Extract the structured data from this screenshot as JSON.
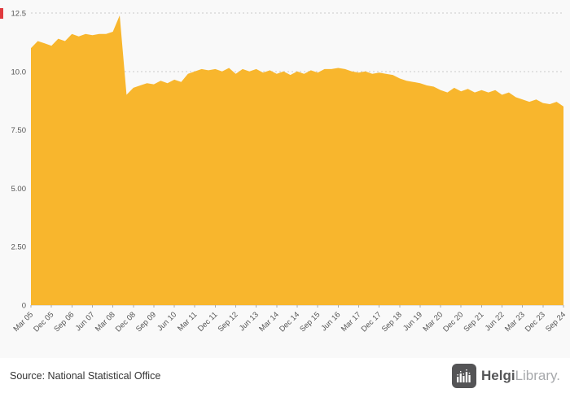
{
  "footer": {
    "source": "Source: National Statistical Office",
    "logo_primary": "Helgi",
    "logo_secondary": "Library",
    "logo_suffix": "."
  },
  "chart_data": {
    "type": "area",
    "title": "",
    "xlabel": "",
    "ylabel": "",
    "ylim": [
      0,
      12.5
    ],
    "grid": true,
    "legend": false,
    "series_color": "#f8b62d",
    "background": "#f9f9f9",
    "axis_marker_color": "#e03a3e",
    "y_ticks": [
      "0",
      "2.50",
      "5.00",
      "7.50",
      "10.0",
      "12.5"
    ],
    "y_tick_values": [
      0,
      2.5,
      5.0,
      7.5,
      10.0,
      12.5
    ],
    "x_tick_every": 3,
    "x_tick_labels": [
      "Mar 05",
      "Dec 05",
      "Sep 06",
      "Jun 07",
      "Mar 08",
      "Dec 08",
      "Sep 09",
      "Jun 10",
      "Mar 11",
      "Dec 11",
      "Sep 12",
      "Jun 13",
      "Mar 14",
      "Dec 14",
      "Sep 15",
      "Jun 16",
      "Mar 17",
      "Dec 17",
      "Sep 18",
      "Jun 19",
      "Mar 20",
      "Dec 20",
      "Sep 21",
      "Jun 22",
      "Mar 23",
      "Dec 23",
      "Sep 24"
    ],
    "categories": [
      "Mar 05",
      "Jun 05",
      "Sep 05",
      "Dec 05",
      "Mar 06",
      "Jun 06",
      "Sep 06",
      "Dec 06",
      "Mar 07",
      "Jun 07",
      "Sep 07",
      "Dec 07",
      "Mar 08",
      "Jun 08",
      "Sep 08",
      "Dec 08",
      "Mar 09",
      "Jun 09",
      "Sep 09",
      "Dec 09",
      "Mar 10",
      "Jun 10",
      "Sep 10",
      "Dec 10",
      "Mar 11",
      "Jun 11",
      "Sep 11",
      "Dec 11",
      "Mar 12",
      "Jun 12",
      "Sep 12",
      "Dec 12",
      "Mar 13",
      "Jun 13",
      "Sep 13",
      "Dec 13",
      "Mar 14",
      "Jun 14",
      "Sep 14",
      "Dec 14",
      "Mar 15",
      "Jun 15",
      "Sep 15",
      "Dec 15",
      "Mar 16",
      "Jun 16",
      "Sep 16",
      "Dec 16",
      "Mar 17",
      "Jun 17",
      "Sep 17",
      "Dec 17",
      "Mar 18",
      "Jun 18",
      "Sep 18",
      "Dec 18",
      "Mar 19",
      "Jun 19",
      "Sep 19",
      "Dec 19",
      "Mar 20",
      "Jun 20",
      "Sep 20",
      "Dec 20",
      "Mar 21",
      "Jun 21",
      "Sep 21",
      "Dec 21",
      "Mar 22",
      "Jun 22",
      "Sep 22",
      "Dec 22",
      "Mar 23",
      "Jun 23",
      "Sep 23",
      "Dec 23",
      "Mar 24",
      "Jun 24",
      "Sep 24"
    ],
    "values": [
      11.0,
      11.3,
      11.2,
      11.1,
      11.4,
      11.3,
      11.6,
      11.5,
      11.6,
      11.55,
      11.6,
      11.6,
      11.7,
      12.4,
      9.0,
      9.3,
      9.4,
      9.5,
      9.45,
      9.6,
      9.5,
      9.65,
      9.55,
      9.9,
      10.0,
      10.1,
      10.05,
      10.1,
      10.0,
      10.15,
      9.9,
      10.1,
      10.0,
      10.1,
      9.95,
      10.05,
      9.9,
      10.0,
      9.85,
      10.0,
      9.9,
      10.05,
      9.95,
      10.1,
      10.1,
      10.15,
      10.1,
      10.0,
      9.95,
      10.0,
      9.9,
      9.95,
      9.9,
      9.85,
      9.7,
      9.6,
      9.55,
      9.5,
      9.4,
      9.35,
      9.2,
      9.1,
      9.3,
      9.15,
      9.25,
      9.1,
      9.2,
      9.1,
      9.2,
      9.0,
      9.1,
      8.9,
      8.8,
      8.7,
      8.8,
      8.65,
      8.6,
      8.7,
      8.5
    ]
  }
}
